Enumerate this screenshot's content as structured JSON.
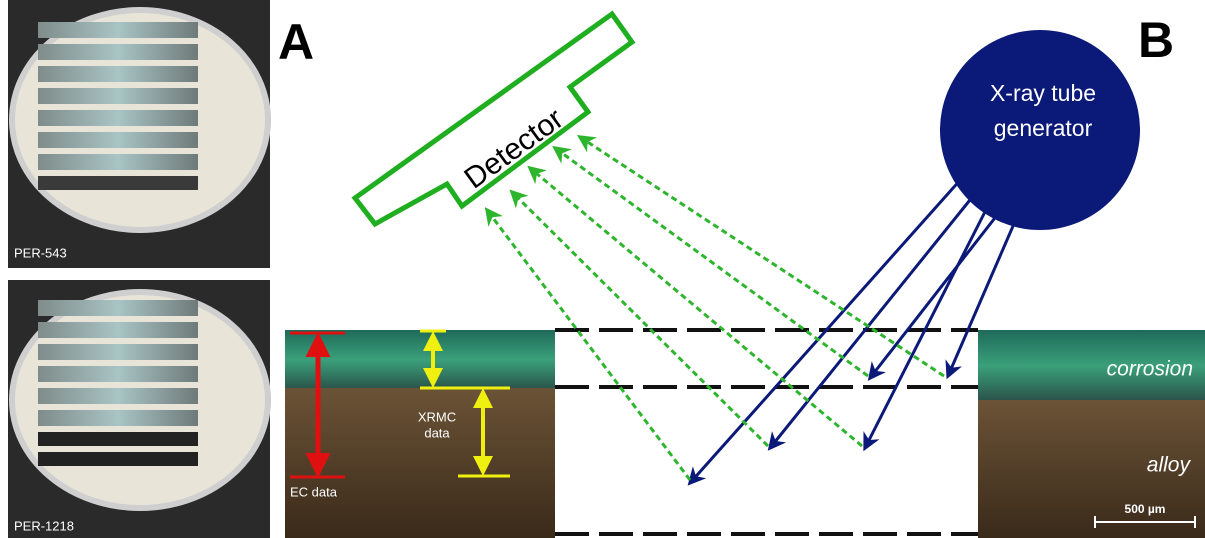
{
  "panels": {
    "a": "A",
    "b": "B"
  },
  "photos": [
    {
      "label": "PER-543"
    },
    {
      "label": "PER-1218"
    }
  ],
  "detector": {
    "label": "Detector"
  },
  "generator": {
    "lines": [
      "X-ray tube",
      "generator"
    ]
  },
  "layers": {
    "top": "corrosion",
    "bottom": "alloy"
  },
  "annotations": {
    "xrmc": [
      "XRMC",
      "data"
    ],
    "ec": "EC data"
  },
  "scale_bar": {
    "label": "500 µm"
  }
}
